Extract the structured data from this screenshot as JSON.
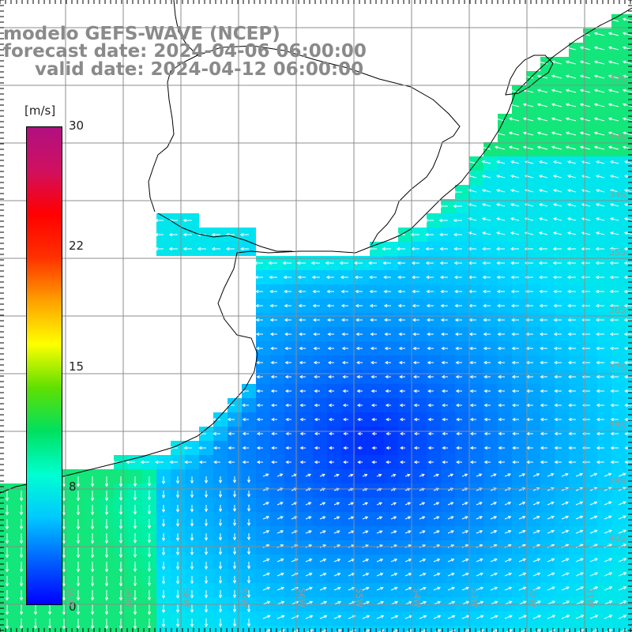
{
  "title": {
    "line1": "modelo GEFS-WAVE (NCEP)",
    "line2": "forecast date: 2024-04-06 06:00:00",
    "line3": "valid date: 2024-04-12 06:00:00"
  },
  "colorbar": {
    "unit": "[m/s]",
    "ticks": [
      "30",
      "22",
      "15",
      "8",
      "0"
    ],
    "range": [
      0,
      30
    ],
    "colors": [
      "#0000ff",
      "#0060ff",
      "#00c8ff",
      "#00ffd0",
      "#00e060",
      "#60e000",
      "#ffff00",
      "#ffa000",
      "#ff3000",
      "#ff0000",
      "#d01060",
      "#b01080"
    ]
  },
  "map": {
    "lat_labels": [
      "32S",
      "33S",
      "34S",
      "35S",
      "36S",
      "37S",
      "38S",
      "39S",
      "40S"
    ],
    "lon_labels": [
      "60W",
      "59W",
      "58W",
      "57W",
      "56W",
      "55W",
      "54W",
      "53W",
      "52W",
      "51W"
    ],
    "land_color": "#ffffff",
    "grid_color": "#8c8c8c",
    "coast_color": "#000000",
    "arrow_color": "#ffffff"
  }
}
